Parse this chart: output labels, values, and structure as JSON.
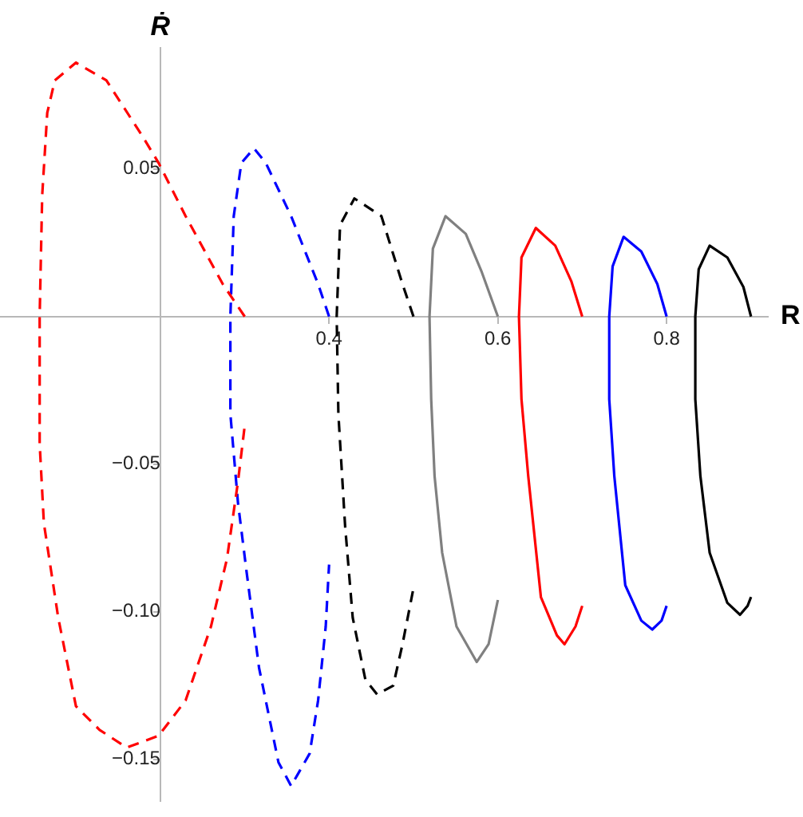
{
  "chart_data": {
    "type": "line",
    "xlabel": "R",
    "ylabel": "Ṙ",
    "xlim": [
      0.01,
      0.92
    ],
    "ylim": [
      -0.164,
      0.091
    ],
    "xticks": [
      0.4,
      0.6,
      0.8
    ],
    "yticks": [
      {
        "value": -0.15,
        "label": "−0.15"
      },
      {
        "value": -0.1,
        "label": "−0.10"
      },
      {
        "value": -0.05,
        "label": "−0.05"
      },
      0.05
    ],
    "grid": false,
    "legend": false,
    "marker": "none",
    "series": [
      {
        "color": "#ff0000",
        "line_style": "dashed",
        "x": [
          0.3,
          0.274,
          0.23,
          0.198,
          0.179,
          0.136,
          0.1,
          0.075,
          0.066,
          0.06,
          0.057,
          0.057,
          0.062,
          0.079,
          0.1,
          0.128,
          0.16,
          0.198,
          0.23,
          0.26,
          0.279,
          0.292,
          0.3
        ],
        "values": [
          0,
          0.011,
          0.034,
          0.052,
          0.061,
          0.08,
          0.086,
          0.08,
          0.069,
          0.041,
          0,
          -0.043,
          -0.07,
          -0.102,
          -0.132,
          -0.14,
          -0.146,
          -0.142,
          -0.13,
          -0.105,
          -0.082,
          -0.056,
          -0.037
        ]
      },
      {
        "color": "#0000ff",
        "line_style": "dashed",
        "x": [
          0.4,
          0.387,
          0.355,
          0.325,
          0.311,
          0.296,
          0.287,
          0.283,
          0.283,
          0.292,
          0.302,
          0.317,
          0.34,
          0.355,
          0.377,
          0.387,
          0.396,
          0.4
        ],
        "values": [
          0,
          0.011,
          0.034,
          0.052,
          0.057,
          0.052,
          0.034,
          0,
          -0.033,
          -0.063,
          -0.086,
          -0.119,
          -0.151,
          -0.159,
          -0.148,
          -0.13,
          -0.105,
          -0.084
        ]
      },
      {
        "color": "#000000",
        "line_style": "dashed",
        "x": [
          0.5,
          0.487,
          0.462,
          0.43,
          0.413,
          0.409,
          0.411,
          0.419,
          0.428,
          0.443,
          0.457,
          0.476,
          0.487,
          0.5
        ],
        "values": [
          0,
          0.011,
          0.034,
          0.04,
          0.031,
          0,
          -0.033,
          -0.071,
          -0.102,
          -0.123,
          -0.128,
          -0.125,
          -0.111,
          -0.092
        ]
      },
      {
        "color": "#808080",
        "line_style": "solid",
        "x": [
          0.6,
          0.581,
          0.562,
          0.538,
          0.523,
          0.519,
          0.521,
          0.525,
          0.534,
          0.551,
          0.575,
          0.589,
          0.6
        ],
        "values": [
          0,
          0.015,
          0.028,
          0.034,
          0.023,
          0,
          -0.028,
          -0.054,
          -0.08,
          -0.105,
          -0.117,
          -0.111,
          -0.096
        ]
      },
      {
        "color": "#ff0000",
        "line_style": "solid",
        "x": [
          0.7,
          0.687,
          0.668,
          0.645,
          0.628,
          0.625,
          0.628,
          0.636,
          0.651,
          0.67,
          0.679,
          0.692,
          0.7
        ],
        "values": [
          0,
          0.012,
          0.024,
          0.03,
          0.02,
          0,
          -0.028,
          -0.054,
          -0.095,
          -0.108,
          -0.111,
          -0.105,
          -0.098
        ]
      },
      {
        "color": "#0000ff",
        "line_style": "solid",
        "x": [
          0.8,
          0.789,
          0.77,
          0.749,
          0.736,
          0.732,
          0.732,
          0.738,
          0.751,
          0.77,
          0.783,
          0.794,
          0.8
        ],
        "values": [
          0,
          0.011,
          0.022,
          0.027,
          0.017,
          0,
          -0.028,
          -0.054,
          -0.091,
          -0.103,
          -0.106,
          -0.103,
          -0.098
        ]
      },
      {
        "color": "#000000",
        "line_style": "solid",
        "x": [
          0.9,
          0.891,
          0.872,
          0.851,
          0.838,
          0.834,
          0.834,
          0.84,
          0.851,
          0.872,
          0.887,
          0.896,
          0.9
        ],
        "values": [
          0,
          0.01,
          0.02,
          0.024,
          0.016,
          0,
          -0.028,
          -0.054,
          -0.08,
          -0.097,
          -0.101,
          -0.098,
          -0.095
        ]
      }
    ]
  }
}
